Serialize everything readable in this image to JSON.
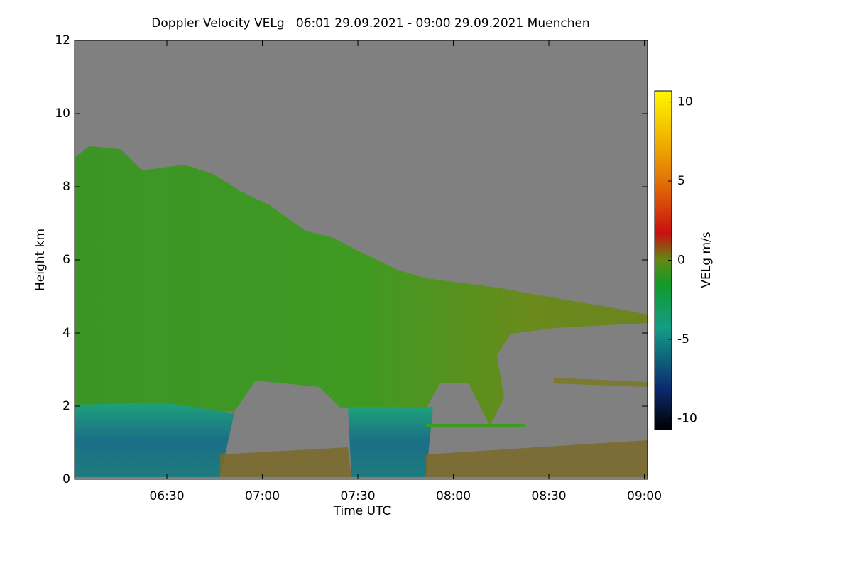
{
  "chart_data": {
    "type": "heatmap",
    "title": "Doppler Velocity VELg   06:01 29.09.2021 - 09:00 29.09.2021 Muenchen",
    "x_label": "Time UTC",
    "y_label": "Height km",
    "colorbar_label": "VELg m/s",
    "xlim": [
      361,
      541
    ],
    "xticks": [
      {
        "value": 390,
        "label": "06:30"
      },
      {
        "value": 420,
        "label": "07:00"
      },
      {
        "value": 450,
        "label": "07:30"
      },
      {
        "value": 480,
        "label": "08:00"
      },
      {
        "value": 510,
        "label": "08:30"
      },
      {
        "value": 540,
        "label": "09:00"
      }
    ],
    "ylim": [
      0,
      12
    ],
    "yticks": [
      0,
      2,
      4,
      6,
      8,
      10,
      12
    ],
    "clim": [
      -10.7,
      10.7
    ],
    "cticks": [
      -10,
      -5,
      0,
      5,
      10
    ],
    "grid": false
  }
}
